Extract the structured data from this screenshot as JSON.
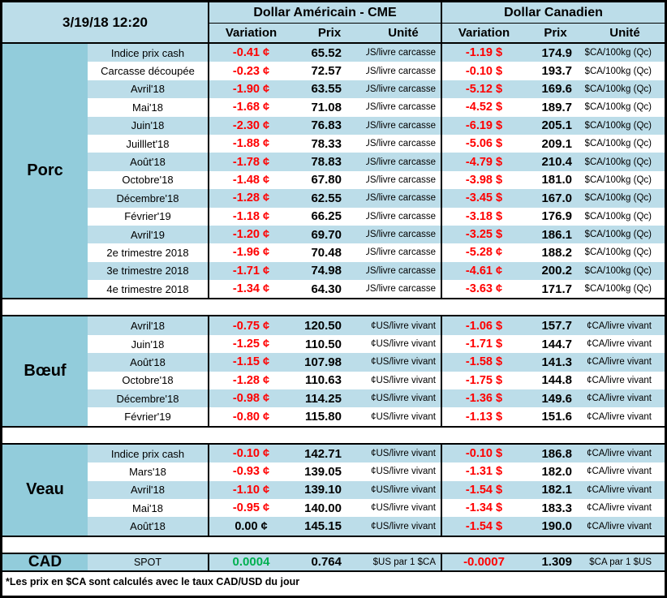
{
  "meta": {
    "timestamp": "3/19/18 12:20"
  },
  "header": {
    "usd_title": "Dollar Américain - CME",
    "cad_title": "Dollar Canadien",
    "columns": {
      "variation": "Variation",
      "prix": "Prix",
      "unite": "Unité"
    }
  },
  "colors": {
    "category_bg": "#92CCDB",
    "stripe_bg": "#BCDDE9",
    "white_bg": "#FFFFFF",
    "negative_text": "#FF0000",
    "positive_text": "#00B050",
    "border": "#000000"
  },
  "sections": [
    {
      "category": "Porc",
      "slug": "porc",
      "rows": [
        {
          "label": "Indice prix cash",
          "us_var": "-0.41 ¢",
          "us_prix": "65.52",
          "us_unit": "¢US/livre carcasse",
          "ca_var": "-1.19 $",
          "ca_prix": "174.9",
          "ca_unit": "$CA/100kg (Qc)"
        },
        {
          "label": "Carcasse découpée",
          "us_var": "-0.23 ¢",
          "us_prix": "72.57",
          "us_unit": "¢US/livre carcasse",
          "ca_var": "-0.10 $",
          "ca_prix": "193.7",
          "ca_unit": "$CA/100kg (Qc)"
        },
        {
          "label": "Avril'18",
          "us_var": "-1.90 ¢",
          "us_prix": "63.55",
          "us_unit": "¢US/livre carcasse",
          "ca_var": "-5.12 $",
          "ca_prix": "169.6",
          "ca_unit": "$CA/100kg (Qc)"
        },
        {
          "label": "Mai'18",
          "us_var": "-1.68 ¢",
          "us_prix": "71.08",
          "us_unit": "¢US/livre carcasse",
          "ca_var": "-4.52 $",
          "ca_prix": "189.7",
          "ca_unit": "$CA/100kg (Qc)"
        },
        {
          "label": "Juin'18",
          "us_var": "-2.30 ¢",
          "us_prix": "76.83",
          "us_unit": "¢US/livre carcasse",
          "ca_var": "-6.19 $",
          "ca_prix": "205.1",
          "ca_unit": "$CA/100kg (Qc)"
        },
        {
          "label": "Juilllet'18",
          "us_var": "-1.88 ¢",
          "us_prix": "78.33",
          "us_unit": "¢US/livre carcasse",
          "ca_var": "-5.06 $",
          "ca_prix": "209.1",
          "ca_unit": "$CA/100kg (Qc)"
        },
        {
          "label": "Août'18",
          "us_var": "-1.78 ¢",
          "us_prix": "78.83",
          "us_unit": "¢US/livre carcasse",
          "ca_var": "-4.79 $",
          "ca_prix": "210.4",
          "ca_unit": "$CA/100kg (Qc)"
        },
        {
          "label": "Octobre'18",
          "us_var": "-1.48 ¢",
          "us_prix": "67.80",
          "us_unit": "¢US/livre carcasse",
          "ca_var": "-3.98 $",
          "ca_prix": "181.0",
          "ca_unit": "$CA/100kg (Qc)"
        },
        {
          "label": "Décembre'18",
          "us_var": "-1.28 ¢",
          "us_prix": "62.55",
          "us_unit": "¢US/livre carcasse",
          "ca_var": "-3.45 $",
          "ca_prix": "167.0",
          "ca_unit": "$CA/100kg (Qc)"
        },
        {
          "label": "Février'19",
          "us_var": "-1.18 ¢",
          "us_prix": "66.25",
          "us_unit": "¢US/livre carcasse",
          "ca_var": "-3.18 $",
          "ca_prix": "176.9",
          "ca_unit": "$CA/100kg (Qc)"
        },
        {
          "label": "Avril'19",
          "us_var": "-1.20 ¢",
          "us_prix": "69.70",
          "us_unit": "¢US/livre carcasse",
          "ca_var": "-3.25 $",
          "ca_prix": "186.1",
          "ca_unit": "$CA/100kg (Qc)"
        },
        {
          "label": "2e trimestre 2018",
          "us_var": "-1.96 ¢",
          "us_prix": "70.48",
          "us_unit": "¢US/livre carcasse",
          "ca_var": "-5.28 ¢",
          "ca_prix": "188.2",
          "ca_unit": "$CA/100kg (Qc)"
        },
        {
          "label": "3e trimestre 2018",
          "us_var": "-1.71 ¢",
          "us_prix": "74.98",
          "us_unit": "¢US/livre carcasse",
          "ca_var": "-4.61 ¢",
          "ca_prix": "200.2",
          "ca_unit": "$CA/100kg (Qc)"
        },
        {
          "label": "4e trimestre 2018",
          "us_var": "-1.34 ¢",
          "us_prix": "64.30",
          "us_unit": "¢US/livre carcasse",
          "ca_var": "-3.63 ¢",
          "ca_prix": "171.7",
          "ca_unit": "$CA/100kg (Qc)"
        }
      ]
    },
    {
      "category": "Bœuf",
      "slug": "boeuf",
      "rows": [
        {
          "label": "Avril'18",
          "us_var": "-0.75 ¢",
          "us_prix": "120.50",
          "us_unit": "¢US/livre vivant",
          "ca_var": "-1.06 $",
          "ca_prix": "157.7",
          "ca_unit": "¢CA/livre vivant"
        },
        {
          "label": "Juin'18",
          "us_var": "-1.25 ¢",
          "us_prix": "110.50",
          "us_unit": "¢US/livre vivant",
          "ca_var": "-1.71 $",
          "ca_prix": "144.7",
          "ca_unit": "¢CA/livre vivant"
        },
        {
          "label": "Août'18",
          "us_var": "-1.15 ¢",
          "us_prix": "107.98",
          "us_unit": "¢US/livre vivant",
          "ca_var": "-1.58 $",
          "ca_prix": "141.3",
          "ca_unit": "¢CA/livre vivant"
        },
        {
          "label": "Octobre'18",
          "us_var": "-1.28 ¢",
          "us_prix": "110.63",
          "us_unit": "¢US/livre vivant",
          "ca_var": "-1.75 $",
          "ca_prix": "144.8",
          "ca_unit": "¢CA/livre vivant"
        },
        {
          "label": "Décembre'18",
          "us_var": "-0.98 ¢",
          "us_prix": "114.25",
          "us_unit": "¢US/livre vivant",
          "ca_var": "-1.36 $",
          "ca_prix": "149.6",
          "ca_unit": "¢CA/livre vivant"
        },
        {
          "label": "Février'19",
          "us_var": "-0.80 ¢",
          "us_prix": "115.80",
          "us_unit": "¢US/livre vivant",
          "ca_var": "-1.13 $",
          "ca_prix": "151.6",
          "ca_unit": "¢CA/livre vivant"
        }
      ]
    },
    {
      "category": "Veau",
      "slug": "veau",
      "rows": [
        {
          "label": "Indice prix cash",
          "us_var": "-0.10 ¢",
          "us_prix": "142.71",
          "us_unit": "¢US/livre vivant",
          "ca_var": "-0.10 $",
          "ca_prix": "186.8",
          "ca_unit": "¢CA/livre vivant"
        },
        {
          "label": "Mars'18",
          "us_var": "-0.93 ¢",
          "us_prix": "139.05",
          "us_unit": "¢US/livre vivant",
          "ca_var": "-1.31 $",
          "ca_prix": "182.0",
          "ca_unit": "¢CA/livre vivant"
        },
        {
          "label": "Avril'18",
          "us_var": "-1.10 ¢",
          "us_prix": "139.10",
          "us_unit": "¢US/livre vivant",
          "ca_var": "-1.54 $",
          "ca_prix": "182.1",
          "ca_unit": "¢CA/livre vivant"
        },
        {
          "label": "Mai'18",
          "us_var": "-0.95 ¢",
          "us_prix": "140.00",
          "us_unit": "¢US/livre vivant",
          "ca_var": "-1.34 $",
          "ca_prix": "183.3",
          "ca_unit": "¢CA/livre vivant"
        },
        {
          "label": "Août'18",
          "us_var": "0.00 ¢",
          "us_var_style": "zero",
          "us_prix": "145.15",
          "us_unit": "¢US/livre vivant",
          "ca_var": "-1.54 $",
          "ca_prix": "190.0",
          "ca_unit": "¢CA/livre vivant"
        }
      ]
    }
  ],
  "cad_row": {
    "category": "CAD",
    "label": "SPOT",
    "us_var": "0.0004",
    "us_prix": "0.764",
    "us_unit": "$US par 1 $CA",
    "ca_var": "-0.0007",
    "ca_prix": "1.309",
    "ca_unit": "$CA par 1 $US"
  },
  "footnote": "*Les  prix en $CA sont calculés avec le taux CAD/USD du jour"
}
